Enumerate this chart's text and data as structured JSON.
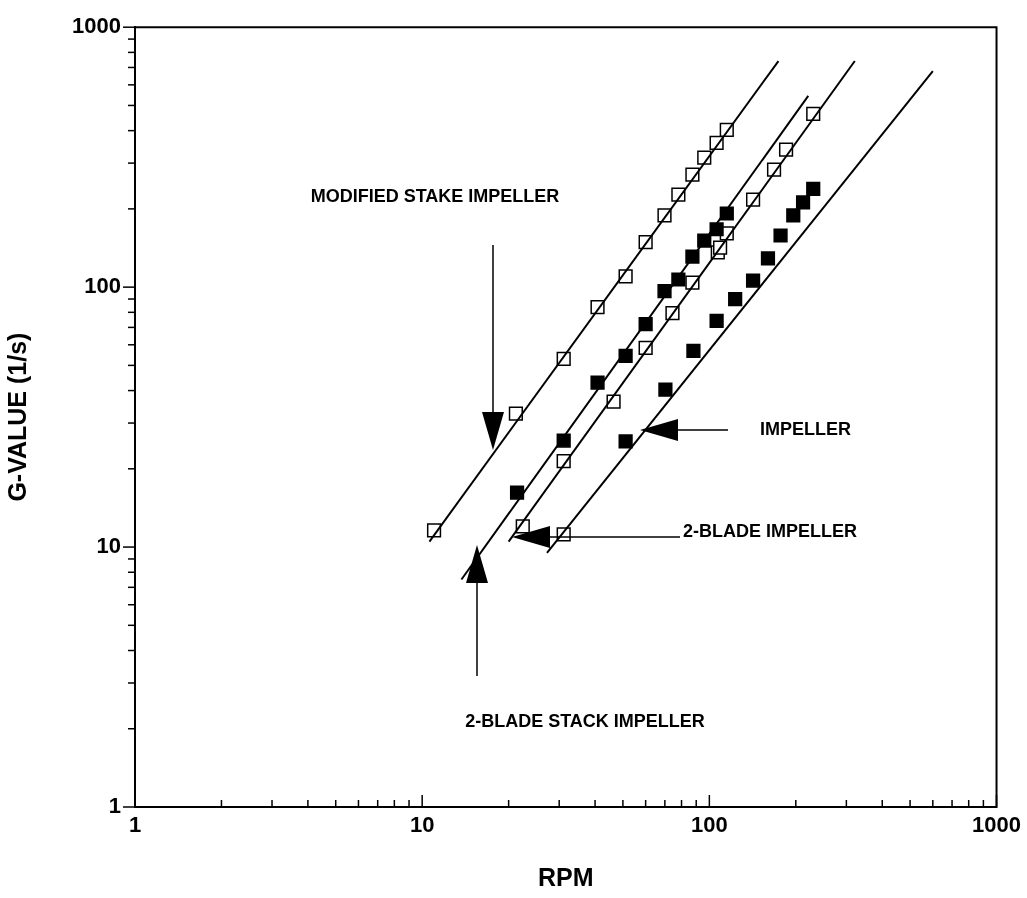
{
  "chart_data": {
    "type": "scatter",
    "xlabel": "RPM",
    "ylabel": "G-VALUE (1/s)",
    "log": "xy",
    "grid": false,
    "legend": false,
    "marker": "square",
    "xlim": [
      1,
      1000
    ],
    "ylim": [
      1,
      1000
    ],
    "xticks": [
      1,
      {
        "value": 2,
        "label": null
      },
      {
        "value": 3,
        "label": null
      },
      {
        "value": 4,
        "label": null
      },
      {
        "value": 5,
        "label": null
      },
      {
        "value": 6,
        "label": null
      },
      {
        "value": 7,
        "label": null
      },
      {
        "value": 8,
        "label": null
      },
      {
        "value": 9,
        "label": null
      },
      10,
      {
        "value": 20,
        "label": null
      },
      {
        "value": 30,
        "label": null
      },
      {
        "value": 40,
        "label": null
      },
      {
        "value": 50,
        "label": null
      },
      {
        "value": 60,
        "label": null
      },
      {
        "value": 70,
        "label": null
      },
      {
        "value": 80,
        "label": null
      },
      {
        "value": 90,
        "label": null
      },
      100,
      {
        "value": 200,
        "label": null
      },
      {
        "value": 300,
        "label": null
      },
      {
        "value": 400,
        "label": null
      },
      {
        "value": 500,
        "label": null
      },
      {
        "value": 600,
        "label": null
      },
      {
        "value": 700,
        "label": null
      },
      {
        "value": 800,
        "label": null
      },
      {
        "value": 900,
        "label": null
      },
      1000
    ],
    "yticks": [
      1,
      {
        "value": 2,
        "label": null
      },
      {
        "value": 3,
        "label": null
      },
      {
        "value": 4,
        "label": null
      },
      {
        "value": 5,
        "label": null
      },
      {
        "value": 6,
        "label": null
      },
      {
        "value": 7,
        "label": null
      },
      {
        "value": 8,
        "label": null
      },
      {
        "value": 9,
        "label": null
      },
      10,
      {
        "value": 20,
        "label": null
      },
      {
        "value": 30,
        "label": null
      },
      {
        "value": 40,
        "label": null
      },
      {
        "value": 50,
        "label": null
      },
      {
        "value": 60,
        "label": null
      },
      {
        "value": 70,
        "label": null
      },
      {
        "value": 80,
        "label": null
      },
      {
        "value": 90,
        "label": null
      },
      100,
      {
        "value": 200,
        "label": null
      },
      {
        "value": 300,
        "label": null
      },
      {
        "value": 400,
        "label": null
      },
      {
        "value": 500,
        "label": null
      },
      {
        "value": 600,
        "label": null
      },
      {
        "value": 700,
        "label": null
      },
      {
        "value": 800,
        "label": null
      },
      {
        "value": 900,
        "label": null
      },
      1000
    ],
    "series": [
      {
        "type": "line",
        "marker": "none",
        "color": "#000000",
        "x": [
          10.6,
          174
        ],
        "values": [
          10.5,
          741
        ]
      },
      {
        "type": "line",
        "marker": "none",
        "color": "#000000",
        "x": [
          13.7,
          221
        ],
        "values": [
          7.5,
          544
        ]
      },
      {
        "type": "line",
        "marker": "none",
        "color": "#000000",
        "x": [
          20,
          321
        ],
        "values": [
          10.5,
          741
        ]
      },
      {
        "type": "line",
        "marker": "none",
        "color": "#000000",
        "x": [
          27.2,
          600
        ],
        "values": [
          9.5,
          678
        ]
      },
      {
        "color": "#ffffff",
        "x": [
          11,
          21.2,
          31.1,
          40.8,
          51.1,
          60,
          69.8,
          78,
          87.3,
          96,
          106,
          115
        ],
        "values": [
          11.6,
          32.6,
          53,
          83.8,
          110,
          149,
          189,
          227,
          271,
          315,
          359,
          403
        ]
      },
      {
        "color": "#000000",
        "x": [
          21.4,
          31.1,
          40.8,
          51.1,
          60,
          69.8,
          78,
          87.3,
          96,
          106,
          115
        ],
        "values": [
          16.2,
          25.7,
          42.9,
          54.4,
          72.1,
          96.6,
          107,
          131,
          151,
          167,
          192
        ]
      },
      {
        "color": "#ffffff",
        "x": [
          22.4,
          31.1,
          31.1,
          46.4,
          60,
          74.4,
          87.3,
          107,
          109,
          115,
          142,
          168,
          185,
          230
        ],
        "values": [
          12,
          11.2,
          21.4,
          36.3,
          58.4,
          79.5,
          104,
          136,
          142,
          161,
          217,
          283,
          338,
          464
        ]
      },
      {
        "color": "#000000",
        "x": [
          51.1,
          70.3,
          88,
          106,
          123,
          142,
          160,
          177,
          196,
          212,
          230
        ],
        "values": [
          25.5,
          40.3,
          56.9,
          74.1,
          90,
          106,
          129,
          158,
          189,
          212,
          239
        ]
      }
    ],
    "annotations": [
      "MODIFIED STAKE IMPELLER",
      "IMPELLER",
      "2-BLADE IMPELLER",
      "2-BLADE STACK IMPELLER"
    ]
  }
}
